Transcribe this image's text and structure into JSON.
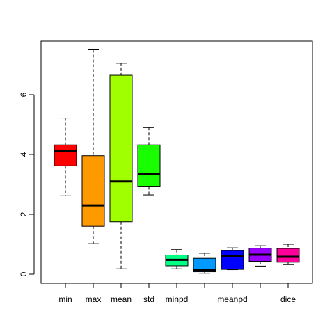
{
  "chart_data": {
    "type": "boxplot",
    "title": "",
    "xlabel": "",
    "ylabel": "",
    "ylim": [
      0,
      7.5
    ],
    "y_ticks": [
      "0",
      "2",
      "4",
      "6"
    ],
    "grid": false,
    "legend": "none",
    "boxes": [
      {
        "label": "min",
        "show_label": true,
        "color": "#FF0000",
        "whisker_low": 2.62,
        "q1": 3.62,
        "median": 4.12,
        "q3": 4.32,
        "whisker_high": 5.22
      },
      {
        "label": "max",
        "show_label": true,
        "color": "#FF9900",
        "whisker_low": 1.02,
        "q1": 1.6,
        "median": 2.3,
        "q3": 3.96,
        "whisker_high": 7.5
      },
      {
        "label": "mean",
        "show_label": true,
        "color": "#A0FF00",
        "whisker_low": 0.18,
        "q1": 1.75,
        "median": 3.1,
        "q3": 6.65,
        "whisker_high": 7.05
      },
      {
        "label": "std",
        "show_label": true,
        "color": "#19FF00",
        "whisker_low": 2.65,
        "q1": 2.92,
        "median": 3.35,
        "q3": 4.32,
        "whisker_high": 4.9
      },
      {
        "label": "minpd",
        "show_label": true,
        "color": "#00FF85",
        "whisker_low": 0.18,
        "q1": 0.28,
        "median": 0.48,
        "q3": 0.64,
        "whisker_high": 0.82
      },
      {
        "label": "",
        "show_label": false,
        "color": "#0099FF",
        "whisker_low": 0.03,
        "q1": 0.08,
        "median": 0.15,
        "q3": 0.53,
        "whisker_high": 0.7
      },
      {
        "label": "meanpd",
        "show_label": true,
        "color": "#0000FF",
        "whisker_low": 0.15,
        "q1": 0.16,
        "median": 0.6,
        "q3": 0.79,
        "whisker_high": 0.88
      },
      {
        "label": "",
        "show_label": false,
        "color": "#9900FF",
        "whisker_low": 0.27,
        "q1": 0.43,
        "median": 0.65,
        "q3": 0.87,
        "whisker_high": 0.95
      },
      {
        "label": "dice",
        "show_label": true,
        "color": "#FF0099",
        "whisker_low": 0.32,
        "q1": 0.4,
        "median": 0.58,
        "q3": 0.86,
        "whisker_high": 1.0
      }
    ]
  }
}
